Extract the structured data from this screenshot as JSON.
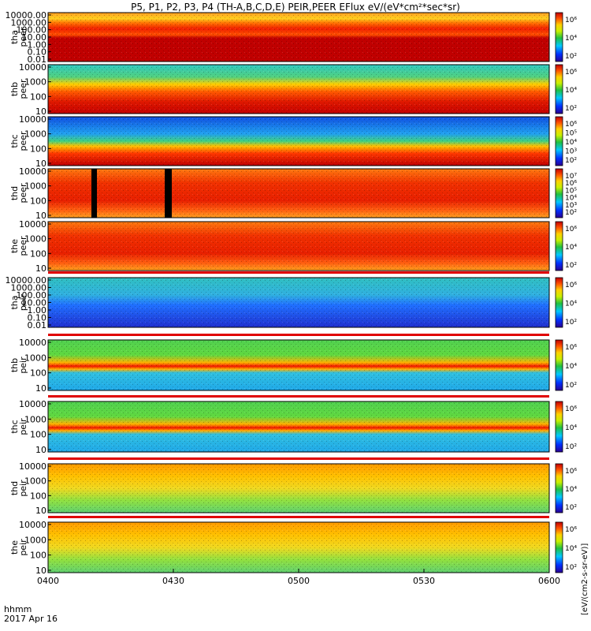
{
  "title": "P5, P1, P2, P3, P4 (TH-A,B,C,D,E) PEIR,PEER EFlux eV/(eV*cm²*sec*sr)",
  "xaxis": {
    "label_line1": "hhmm",
    "label_line2": "2017 Apr 16",
    "ticks": [
      "0400",
      "0430",
      "0500",
      "0530",
      "0600"
    ]
  },
  "colorbar_label": "[eV/(cm2-s-sr-eV)]",
  "chart_data": {
    "type": "heatmap",
    "x": [
      "0400",
      "0430",
      "0500",
      "0530",
      "0600"
    ],
    "xlabel": "hhmm",
    "colors": {
      "low": "#1a0080",
      "mid": "#20c040",
      "high": "#c00000"
    },
    "panels": [
      {
        "label": "tha\npeer",
        "yticks": [
          "10000.00",
          "1000.00",
          "100.00",
          "10.00",
          "1.00",
          "0.10",
          "0.01"
        ],
        "cbticks": [
          "10⁶",
          "10⁴",
          "10²"
        ]
      },
      {
        "label": "thb\npeer",
        "yticks": [
          "10000",
          "1000",
          "100",
          "10"
        ],
        "cbticks": [
          "10⁶",
          "10⁴",
          "10²"
        ]
      },
      {
        "label": "thc\npeer",
        "yticks": [
          "10000",
          "1000",
          "100",
          "10"
        ],
        "cbticks": [
          "10⁶",
          "10⁵",
          "10⁴",
          "10³",
          "10²"
        ]
      },
      {
        "label": "thd\npeer",
        "yticks": [
          "10000",
          "1000",
          "100",
          "10"
        ],
        "cbticks": [
          "10⁷",
          "10⁶",
          "10⁵",
          "10⁴",
          "10³",
          "10²"
        ]
      },
      {
        "label": "the\npeer",
        "yticks": [
          "10000",
          "1000",
          "100",
          "10"
        ],
        "cbticks": [
          "10⁶",
          "10⁴",
          "10²"
        ]
      },
      {
        "label": "tha\npeir",
        "yticks": [
          "10000.00",
          "1000.00",
          "100.00",
          "10.00",
          "1.00",
          "0.10",
          "0.01"
        ],
        "cbticks": [
          "10⁶",
          "10⁴",
          "10²"
        ]
      },
      {
        "label": "thb\npeir",
        "yticks": [
          "10000",
          "1000",
          "100",
          "10"
        ],
        "cbticks": [
          "10⁶",
          "10⁴",
          "10²"
        ]
      },
      {
        "label": "thc\npeir",
        "yticks": [
          "10000",
          "1000",
          "100",
          "10"
        ],
        "cbticks": [
          "10⁶",
          "10⁴",
          "10²"
        ]
      },
      {
        "label": "thd\npeir",
        "yticks": [
          "10000",
          "1000",
          "100",
          "10"
        ],
        "cbticks": [
          "10⁶",
          "10⁴",
          "10²"
        ]
      },
      {
        "label": "the\npeir",
        "yticks": [
          "10000",
          "1000",
          "100",
          "10"
        ],
        "cbticks": [
          "10⁶",
          "10⁴",
          "10²"
        ]
      }
    ]
  }
}
